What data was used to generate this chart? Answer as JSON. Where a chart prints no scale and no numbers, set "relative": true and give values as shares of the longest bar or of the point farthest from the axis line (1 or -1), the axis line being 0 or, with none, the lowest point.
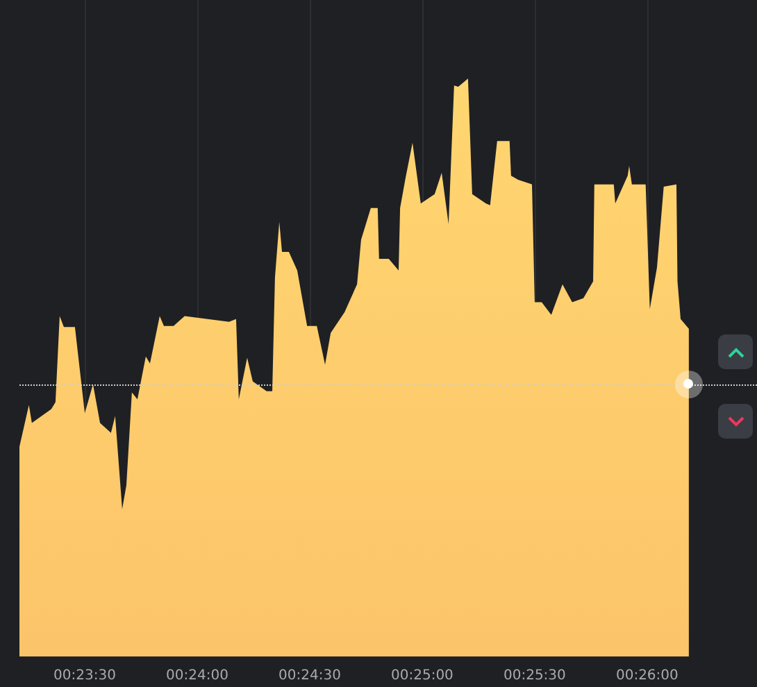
{
  "chart_data": {
    "type": "area",
    "relative": true,
    "grid": "x",
    "color": "#fcc46a",
    "xlim": [
      0.38683,
      0.44147
    ],
    "xticks": [
      {
        "value": 0.391667,
        "label": "00:23:30"
      },
      {
        "value": 0.4,
        "label": "00:24:00"
      },
      {
        "value": 0.408333,
        "label": "00:24:30"
      },
      {
        "value": 0.416667,
        "label": "00:25:00"
      },
      {
        "value": 0.425,
        "label": "00:25:30"
      },
      {
        "value": 0.433333,
        "label": "00:26:00"
      }
    ],
    "x": [
      0.38683,
      0.38753,
      0.38775,
      0.38919,
      0.3895,
      0.38981,
      0.39012,
      0.39094,
      0.39167,
      0.39228,
      0.3928,
      0.39361,
      0.39392,
      0.39444,
      0.39475,
      0.39516,
      0.39557,
      0.39619,
      0.3965,
      0.39722,
      0.39753,
      0.39825,
      0.39907,
      0.40236,
      0.40288,
      0.40308,
      0.4037,
      0.40411,
      0.40514,
      0.40556,
      0.40576,
      0.40608,
      0.40628,
      0.40679,
      0.40741,
      0.40814,
      0.40886,
      0.40947,
      0.40989,
      0.41092,
      0.41184,
      0.41214,
      0.41286,
      0.41337,
      0.41347,
      0.41419,
      0.41492,
      0.41503,
      0.41544,
      0.41595,
      0.41656,
      0.41759,
      0.41811,
      0.41862,
      0.41903,
      0.41934,
      0.42006,
      0.42037,
      0.42139,
      0.4217,
      0.42222,
      0.42314,
      0.42325,
      0.42377,
      0.4248,
      0.425,
      0.42552,
      0.42623,
      0.42706,
      0.42778,
      0.42861,
      0.42933,
      0.42942,
      0.43086,
      0.43097,
      0.43189,
      0.432,
      0.4322,
      0.43322,
      0.43353,
      0.43406,
      0.43456,
      0.4355,
      0.43558,
      0.43581,
      0.43642
    ],
    "values": [
      0.363,
      0.435,
      0.404,
      0.428,
      0.44,
      0.589,
      0.57,
      0.57,
      0.421,
      0.471,
      0.404,
      0.387,
      0.416,
      0.255,
      0.296,
      0.457,
      0.445,
      0.519,
      0.507,
      0.589,
      0.572,
      0.572,
      0.589,
      0.579,
      0.584,
      0.445,
      0.517,
      0.476,
      0.459,
      0.459,
      0.656,
      0.752,
      0.7,
      0.7,
      0.668,
      0.572,
      0.572,
      0.505,
      0.56,
      0.596,
      0.644,
      0.721,
      0.776,
      0.776,
      0.688,
      0.688,
      0.668,
      0.776,
      0.829,
      0.889,
      0.784,
      0.8,
      0.837,
      0.748,
      0.988,
      0.986,
      1,
      0.8,
      0.784,
      0.781,
      0.892,
      0.892,
      0.832,
      0.825,
      0.817,
      0.613,
      0.613,
      0.591,
      0.644,
      0.613,
      0.62,
      0.649,
      0.817,
      0.817,
      0.784,
      0.832,
      0.849,
      0.817,
      0.817,
      0.601,
      0.673,
      0.813,
      0.817,
      0.649,
      0.584,
      0.567
    ],
    "ref_lines": [
      {
        "axis": "y",
        "value": 0.471,
        "color": "#cfcfcf",
        "line_style": "dotted"
      }
    ]
  }
}
